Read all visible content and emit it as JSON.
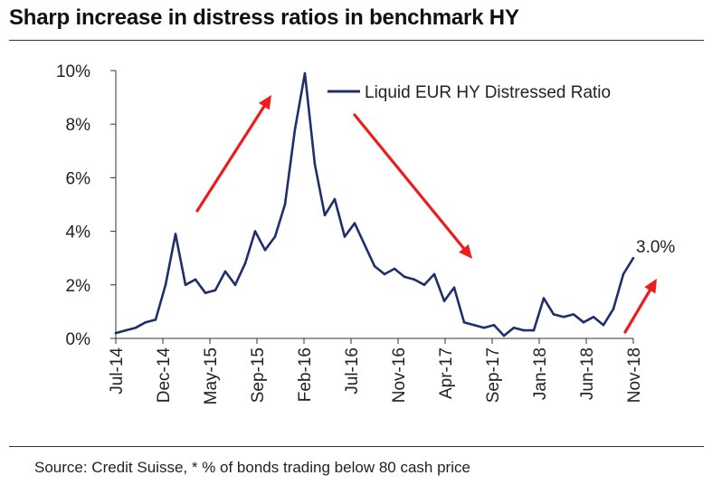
{
  "colors": {
    "series": "#1f2f6b",
    "arrow": "#ee1c1c",
    "axis": "#333333"
  },
  "chart_data": {
    "type": "line",
    "title": "Sharp increase in distress ratios in benchmark HY",
    "source": "Source: Credit Suisse, * % of bonds trading below 80 cash price",
    "xlabel": "",
    "ylabel": "",
    "x_tick_labels": [
      "Jul-14",
      "Dec-14",
      "May-15",
      "Sep-15",
      "Feb-16",
      "Jul-16",
      "Nov-16",
      "Apr-17",
      "Sep-17",
      "Jan-18",
      "Jun-18",
      "Nov-18"
    ],
    "y_tick_labels": [
      "0%",
      "2%",
      "4%",
      "6%",
      "8%",
      "10%"
    ],
    "ylim": [
      0,
      10
    ],
    "xlim": [
      "2014-07",
      "2018-11"
    ],
    "grid": false,
    "legend_position": "top-center",
    "series": [
      {
        "name": "Liquid EUR HY Distressed Ratio",
        "x": [
          "2014-07",
          "2014-08",
          "2014-09",
          "2014-10",
          "2014-11",
          "2014-12",
          "2015-01",
          "2015-02",
          "2015-03",
          "2015-04",
          "2015-05",
          "2015-06",
          "2015-07",
          "2015-08",
          "2015-09",
          "2015-10",
          "2015-11",
          "2015-12",
          "2016-01",
          "2016-02",
          "2016-03",
          "2016-04",
          "2016-05",
          "2016-06",
          "2016-07",
          "2016-08",
          "2016-09",
          "2016-10",
          "2016-11",
          "2016-12",
          "2017-01",
          "2017-02",
          "2017-03",
          "2017-04",
          "2017-05",
          "2017-06",
          "2017-07",
          "2017-08",
          "2017-09",
          "2017-10",
          "2017-11",
          "2017-12",
          "2018-01",
          "2018-02",
          "2018-03",
          "2018-04",
          "2018-05",
          "2018-06",
          "2018-07",
          "2018-08",
          "2018-09",
          "2018-10",
          "2018-11"
        ],
        "values": [
          0.2,
          0.3,
          0.4,
          0.6,
          0.7,
          2.0,
          3.9,
          2.0,
          2.2,
          1.7,
          1.8,
          2.5,
          2.0,
          2.8,
          4.0,
          3.3,
          3.8,
          5.0,
          7.8,
          9.9,
          6.5,
          4.6,
          5.2,
          3.8,
          4.3,
          3.5,
          2.7,
          2.4,
          2.6,
          2.3,
          2.2,
          2.0,
          2.4,
          1.4,
          1.9,
          0.6,
          0.5,
          0.4,
          0.5,
          0.1,
          0.4,
          0.3,
          0.3,
          1.5,
          0.9,
          0.8,
          0.9,
          0.6,
          0.8,
          0.5,
          1.1,
          2.4,
          3.0
        ]
      }
    ],
    "annotations": [
      {
        "text": "3.0%",
        "x": "2018-11",
        "y": 3.0
      }
    ]
  }
}
